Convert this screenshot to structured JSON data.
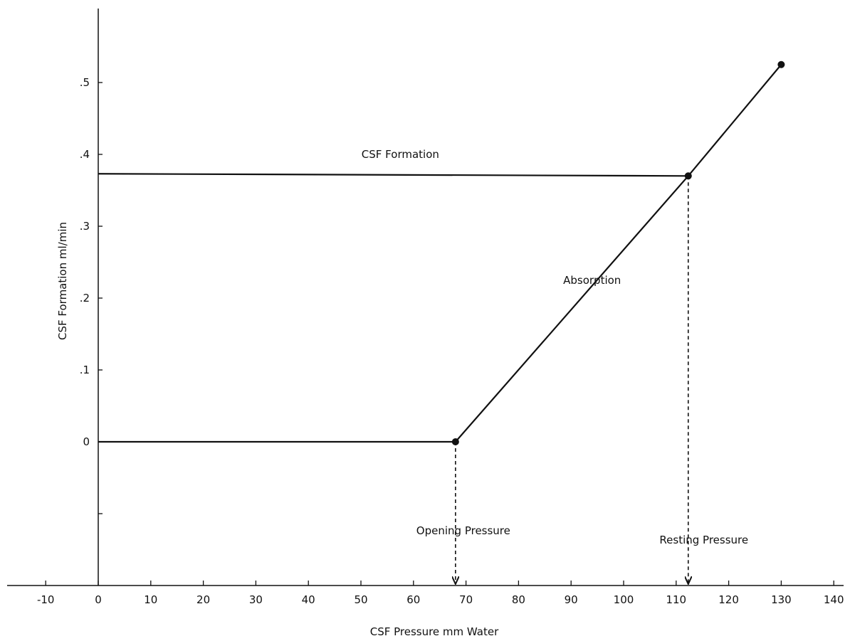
{
  "chart_data": {
    "type": "line",
    "xlabel": "CSF Pressure mm Water",
    "ylabel": "CSF Formation ml/min",
    "xlim": [
      -17,
      142
    ],
    "ylim": [
      -0.2,
      0.6
    ],
    "x_ticks": [
      -10,
      0,
      10,
      20,
      30,
      40,
      50,
      60,
      70,
      80,
      90,
      100,
      110,
      120,
      130,
      140
    ],
    "x_tick_labels": [
      "-10",
      "0",
      "10",
      "20",
      "30",
      "40",
      "50",
      "60",
      "70",
      "80",
      "90",
      "100",
      "110",
      "120",
      "130",
      "140"
    ],
    "y_ticks": [
      -0.1,
      0,
      0.1,
      0.2,
      0.3,
      0.4,
      0.5
    ],
    "y_tick_labels": [
      "",
      "0",
      ".1",
      ".2",
      ".3",
      ".4",
      ".5"
    ],
    "grid": false,
    "series": [
      {
        "name": "CSF Formation",
        "x": [
          0,
          112.3
        ],
        "y": [
          0.373,
          0.37
        ]
      },
      {
        "name": "Absorption",
        "x": [
          0,
          68,
          112.3,
          130
        ],
        "y": [
          0,
          0,
          0.37,
          0.525
        ]
      }
    ],
    "points": [
      {
        "x": 68,
        "y": 0
      },
      {
        "x": 112.3,
        "y": 0.37
      },
      {
        "x": 130,
        "y": 0.525
      }
    ],
    "drop_lines": [
      {
        "x": 68,
        "y_from": 0,
        "label": "Opening Pressure"
      },
      {
        "x": 112.3,
        "y_from": 0.37,
        "label": "Resting Pressure"
      }
    ],
    "annotations": [
      {
        "text": "CSF Formation",
        "x": 57.5,
        "y": 0.4
      },
      {
        "text": "Absorption",
        "x": 94,
        "y": 0.225
      }
    ]
  }
}
